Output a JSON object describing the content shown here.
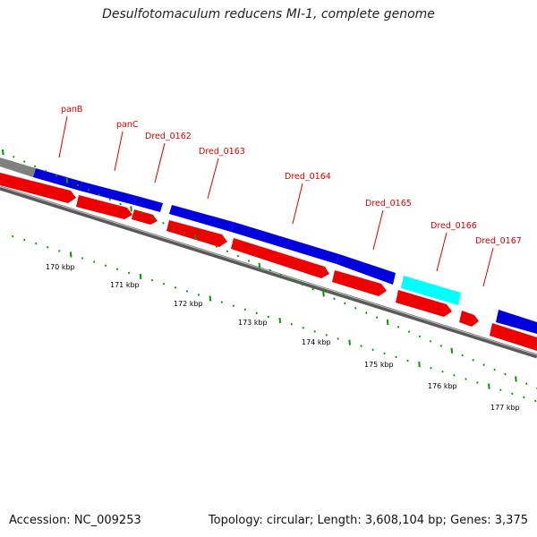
{
  "title": "Desulfotomaculum reducens MI-1, complete genome",
  "footer": {
    "accession": "Accession: NC_009253",
    "summary": "Topology: circular; Length: 3,608,104 bp; Genes: 3,375"
  },
  "colors": {
    "backbone": "#777777",
    "gene_blue": "#0000dd",
    "gene_cyan": "#00ffff",
    "cds_red": "#ee0000",
    "label_red": "#dd0000",
    "tick_green": "#009900"
  },
  "kbp_labels": [
    "170 kbp",
    "171 kbp",
    "172 kbp",
    "173 kbp",
    "174 kbp",
    "175 kbp",
    "176 kbp",
    "177 kbp"
  ],
  "gene_labels": [
    "panB",
    "panC",
    "Dred_0162",
    "Dred_0163",
    "Dred_0164",
    "Dred_0165",
    "Dred_0166",
    "Dred_0167"
  ]
}
